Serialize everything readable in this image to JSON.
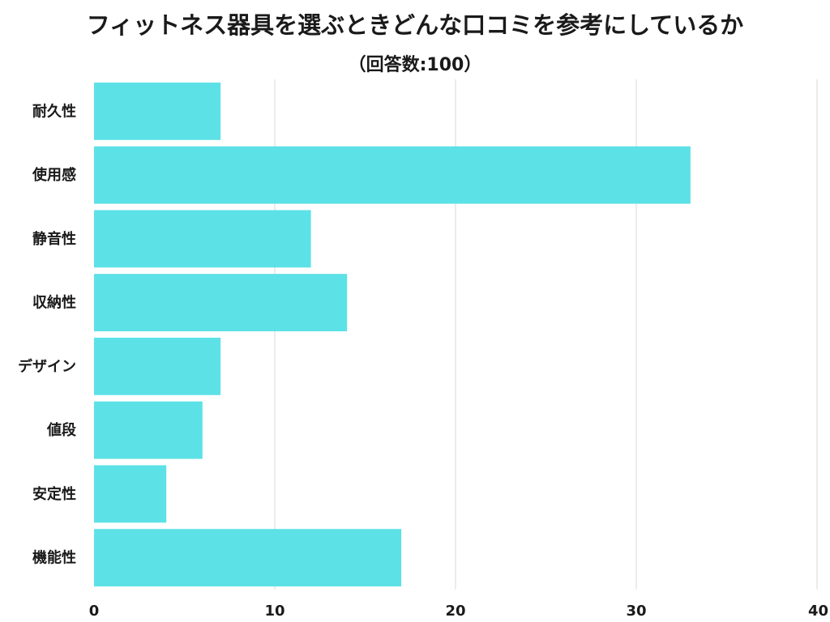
{
  "chart_data": {
    "type": "bar",
    "orientation": "horizontal",
    "title": "フィットネス器具を選ぶときどんな口コミを参考にしているか",
    "subtitle": "（回答数:100）",
    "categories": [
      "耐久性",
      "使用感",
      "静音性",
      "収納性",
      "デザイン",
      "値段",
      "安定性",
      "機能性"
    ],
    "values": [
      7,
      33,
      12,
      14,
      7,
      6,
      4,
      17
    ],
    "xlim": [
      0,
      40
    ],
    "xticks": [
      0,
      10,
      20,
      30,
      40
    ],
    "xlabel": "",
    "ylabel": "",
    "grid": true,
    "bar_color": "#5ce1e6",
    "grid_color": "#d9d9d9"
  }
}
